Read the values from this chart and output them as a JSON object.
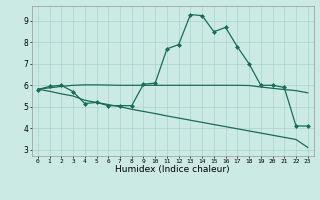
{
  "title": "",
  "xlabel": "Humidex (Indice chaleur)",
  "xlim": [
    -0.5,
    23.5
  ],
  "ylim": [
    2.7,
    9.7
  ],
  "yticks": [
    3,
    4,
    5,
    6,
    7,
    8,
    9
  ],
  "xticks": [
    0,
    1,
    2,
    3,
    4,
    5,
    6,
    7,
    8,
    9,
    10,
    11,
    12,
    13,
    14,
    15,
    16,
    17,
    18,
    19,
    20,
    21,
    22,
    23
  ],
  "bg_color": "#cceae4",
  "line_color": "#1a6b5a",
  "grid_color": "#aad4cc",
  "line1": [
    5.8,
    5.95,
    6.0,
    5.7,
    5.15,
    5.2,
    5.05,
    5.05,
    5.05,
    6.05,
    6.1,
    7.7,
    7.9,
    9.3,
    9.25,
    8.5,
    8.7,
    7.8,
    7.0,
    6.0,
    6.0,
    5.9,
    4.1,
    4.1
  ],
  "line2": [
    5.82,
    5.88,
    5.95,
    6.0,
    6.02,
    6.02,
    6.01,
    6.0,
    6.0,
    6.0,
    6.0,
    6.0,
    6.0,
    6.0,
    6.0,
    6.0,
    6.0,
    6.0,
    5.99,
    5.92,
    5.86,
    5.8,
    5.75,
    5.65
  ],
  "line3": [
    5.82,
    5.72,
    5.6,
    5.5,
    5.3,
    5.2,
    5.1,
    5.0,
    4.88,
    4.78,
    4.68,
    4.57,
    4.47,
    4.37,
    4.27,
    4.17,
    4.07,
    3.97,
    3.87,
    3.77,
    3.67,
    3.57,
    3.47,
    3.1
  ],
  "markersize": 2.5,
  "linewidth": 0.9
}
